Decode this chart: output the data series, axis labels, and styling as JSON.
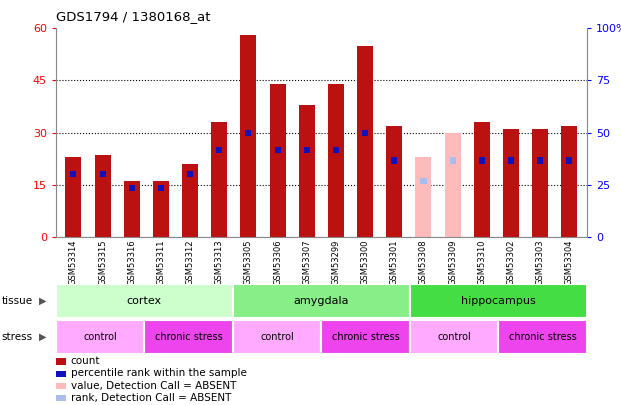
{
  "title": "GDS1794 / 1380168_at",
  "samples": [
    "GSM53314",
    "GSM53315",
    "GSM53316",
    "GSM53311",
    "GSM53312",
    "GSM53313",
    "GSM53305",
    "GSM53306",
    "GSM53307",
    "GSM53299",
    "GSM53300",
    "GSM53301",
    "GSM53308",
    "GSM53309",
    "GSM53310",
    "GSM53302",
    "GSM53303",
    "GSM53304"
  ],
  "count_values": [
    23,
    23.5,
    16,
    16,
    21,
    33,
    58,
    44,
    38,
    44,
    55,
    32,
    0,
    0,
    33,
    31,
    31,
    32
  ],
  "absent_count": [
    0,
    0,
    0,
    0,
    0,
    0,
    0,
    0,
    0,
    0,
    0,
    0,
    23,
    30,
    0,
    0,
    0,
    0
  ],
  "blue_dot_pos": [
    18,
    18,
    14,
    14,
    18,
    25,
    30,
    25,
    25,
    25,
    30,
    22,
    0,
    0,
    22,
    22,
    22,
    22
  ],
  "absent_blue_pos": [
    0,
    0,
    0,
    0,
    0,
    0,
    0,
    0,
    0,
    0,
    0,
    0,
    16,
    22,
    0,
    0,
    0,
    0
  ],
  "tissue_groups": [
    {
      "label": "cortex",
      "start": 0,
      "end": 6,
      "color": "#ccffcc"
    },
    {
      "label": "amygdala",
      "start": 6,
      "end": 12,
      "color": "#88ee88"
    },
    {
      "label": "hippocampus",
      "start": 12,
      "end": 18,
      "color": "#44dd44"
    }
  ],
  "stress_groups": [
    {
      "label": "control",
      "start": 0,
      "end": 3,
      "color": "#ffaaff"
    },
    {
      "label": "chronic stress",
      "start": 3,
      "end": 6,
      "color": "#ee44ee"
    },
    {
      "label": "control",
      "start": 6,
      "end": 9,
      "color": "#ffaaff"
    },
    {
      "label": "chronic stress",
      "start": 9,
      "end": 12,
      "color": "#ee44ee"
    },
    {
      "label": "control",
      "start": 12,
      "end": 15,
      "color": "#ffaaff"
    },
    {
      "label": "chronic stress",
      "start": 15,
      "end": 18,
      "color": "#ee44ee"
    }
  ],
  "ylim_left": [
    0,
    60
  ],
  "ylim_right": [
    0,
    100
  ],
  "yticks_left": [
    0,
    15,
    30,
    45,
    60
  ],
  "yticks_right": [
    0,
    25,
    50,
    75,
    100
  ],
  "bar_color": "#bb1111",
  "absent_bar_color": "#ffbbbb",
  "blue_color": "#1111bb",
  "absent_blue_color": "#aabbee",
  "legend_items": [
    {
      "color": "#bb1111",
      "label": "count"
    },
    {
      "color": "#1111bb",
      "label": "percentile rank within the sample"
    },
    {
      "color": "#ffbbbb",
      "label": "value, Detection Call = ABSENT"
    },
    {
      "color": "#aabbee",
      "label": "rank, Detection Call = ABSENT"
    }
  ]
}
